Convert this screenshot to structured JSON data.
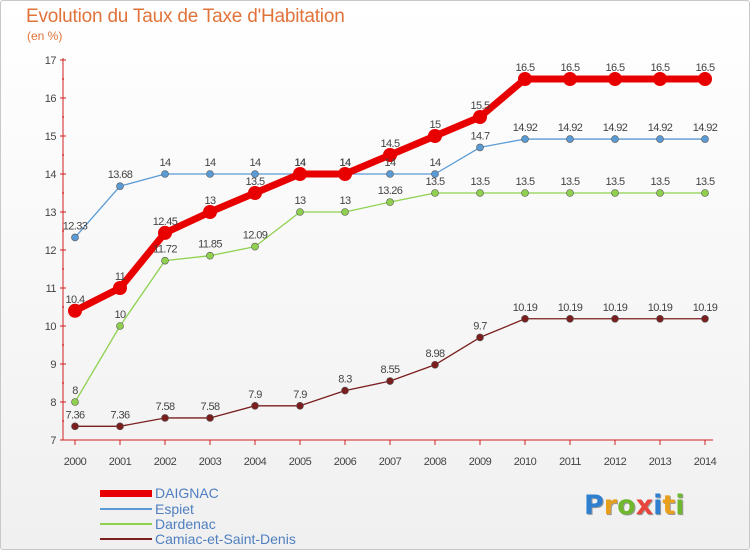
{
  "header": {
    "title": "Evolution du Taux de Taxe d'Habitation",
    "unit": "(en %)"
  },
  "logo": {
    "letters": [
      {
        "ch": "P",
        "color": "#2f7fd1"
      },
      {
        "ch": "r",
        "color": "#e8a01c"
      },
      {
        "ch": "o",
        "color": "#6fb82e"
      },
      {
        "ch": "x",
        "color": "#e8463c"
      },
      {
        "ch": "i",
        "color": "#2f7fd1"
      },
      {
        "ch": "t",
        "color": "#e8a01c"
      },
      {
        "ch": "i",
        "color": "#6fb82e"
      }
    ]
  },
  "chart_data": {
    "type": "line",
    "title": "Evolution du Taux de Taxe d'Habitation",
    "ylabel": "(en %)",
    "xlabel": "",
    "x": [
      "2000",
      "2001",
      "2002",
      "2003",
      "2004",
      "2005",
      "2006",
      "2007",
      "2008",
      "2009",
      "2010",
      "2011",
      "2012",
      "2013",
      "2014"
    ],
    "ylim": [
      7,
      17
    ],
    "yticks": [
      "7",
      "8",
      "9",
      "10",
      "11",
      "12",
      "13",
      "14",
      "15",
      "16",
      "17"
    ],
    "grid": false,
    "legend_position": "bottom-left",
    "series": [
      {
        "name": "DAIGNAC",
        "color": "#e80000",
        "stroke": 7,
        "marker": 7,
        "values": [
          10.4,
          11,
          12.45,
          13,
          13.5,
          14,
          14,
          14.5,
          15,
          15.5,
          16.5,
          16.5,
          16.5,
          16.5,
          16.5
        ],
        "labels": [
          "10.4",
          "11",
          "12.45",
          "13",
          "13.5",
          "14",
          "14",
          "14.5",
          "15",
          "15.5",
          "16.5",
          "16.5",
          "16.5",
          "16.5",
          "16.5"
        ]
      },
      {
        "name": "Espiet",
        "color": "#5b9bd5",
        "stroke": 1.3,
        "marker": 3.5,
        "values": [
          12.33,
          13.68,
          14,
          14,
          14,
          14,
          14,
          14,
          14,
          14.7,
          14.92,
          14.92,
          14.92,
          14.92,
          14.92
        ],
        "labels": [
          "12.33",
          "13.68",
          "14",
          "14",
          "14",
          "14",
          "14",
          "14",
          "14",
          "14.7",
          "14.92",
          "14.92",
          "14.92",
          "14.92",
          "14.92"
        ]
      },
      {
        "name": "Dardenac",
        "color": "#8fd14f",
        "stroke": 1.3,
        "marker": 3.5,
        "values": [
          8,
          10,
          11.72,
          11.85,
          12.09,
          13,
          13,
          13.26,
          13.5,
          13.5,
          13.5,
          13.5,
          13.5,
          13.5,
          13.5
        ],
        "labels": [
          "8",
          "10",
          "11.72",
          "11.85",
          "12.09",
          "13",
          "13",
          "13.26",
          "13.5",
          "13.5",
          "13.5",
          "13.5",
          "13.5",
          "13.5",
          "13.5"
        ]
      },
      {
        "name": "Camiac-et-Saint-Denis",
        "color": "#7a1e1e",
        "stroke": 1.3,
        "marker": 3.5,
        "values": [
          7.36,
          7.36,
          7.58,
          7.58,
          7.9,
          7.9,
          8.3,
          8.55,
          8.98,
          9.7,
          10.19,
          10.19,
          10.19,
          10.19,
          10.19
        ],
        "labels": [
          "7.36",
          "7.36",
          "7.58",
          "7.58",
          "7.9",
          "7.9",
          "8.3",
          "8.55",
          "8.98",
          "9.7",
          "10.19",
          "10.19",
          "10.19",
          "10.19",
          "10.19"
        ]
      }
    ]
  }
}
